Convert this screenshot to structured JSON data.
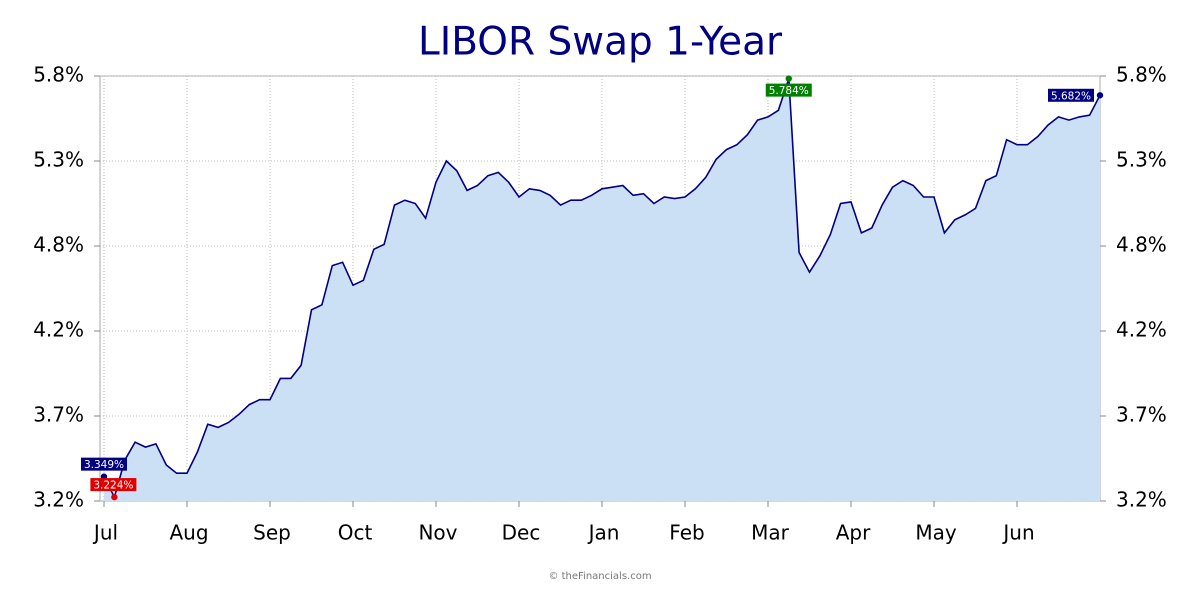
{
  "chart_data": {
    "type": "area",
    "title": "LIBOR Swap 1-Year",
    "footer": "© theFinancials.com",
    "categories": [
      "Jul",
      null,
      null,
      null,
      null,
      null,
      null,
      null,
      "Aug",
      null,
      null,
      null,
      null,
      null,
      null,
      null,
      "Sep",
      null,
      null,
      null,
      null,
      null,
      null,
      null,
      "Oct",
      null,
      null,
      null,
      null,
      null,
      null,
      null,
      "Nov",
      null,
      null,
      null,
      null,
      null,
      null,
      null,
      "Dec",
      null,
      null,
      null,
      null,
      null,
      null,
      null,
      "Jan",
      null,
      null,
      null,
      null,
      null,
      null,
      null,
      "Feb",
      null,
      null,
      null,
      null,
      null,
      null,
      null,
      "Mar",
      null,
      null,
      null,
      null,
      null,
      null,
      null,
      "Apr",
      null,
      null,
      null,
      null,
      null,
      null,
      null,
      "May",
      null,
      null,
      null,
      null,
      null,
      null,
      null,
      "Jun",
      null,
      null,
      null,
      null,
      null,
      null,
      null,
      null
    ],
    "values": [
      3.349,
      3.224,
      3.45,
      3.56,
      3.53,
      3.55,
      3.42,
      3.37,
      3.37,
      3.5,
      3.67,
      3.65,
      3.68,
      3.73,
      3.79,
      3.82,
      3.82,
      3.95,
      3.95,
      4.03,
      4.37,
      4.4,
      4.64,
      4.66,
      4.52,
      4.55,
      4.74,
      4.77,
      5.01,
      5.04,
      5.02,
      4.93,
      5.15,
      5.28,
      5.22,
      5.1,
      5.13,
      5.19,
      5.21,
      5.15,
      5.06,
      5.11,
      5.1,
      5.07,
      5.01,
      5.04,
      5.04,
      5.07,
      5.11,
      5.12,
      5.13,
      5.07,
      5.08,
      5.02,
      5.06,
      5.05,
      5.06,
      5.11,
      5.18,
      5.29,
      5.35,
      5.38,
      5.44,
      5.53,
      5.55,
      5.59,
      5.784,
      4.72,
      4.6,
      4.7,
      4.83,
      5.02,
      5.03,
      4.84,
      4.87,
      5.01,
      5.12,
      5.16,
      5.13,
      5.06,
      5.06,
      4.84,
      4.92,
      4.95,
      4.99,
      5.16,
      5.19,
      5.41,
      5.38,
      5.38,
      5.43,
      5.5,
      5.55,
      5.53,
      5.55,
      5.56,
      5.682
    ],
    "value_labels": [
      "3.349%",
      "3.224%",
      null,
      null,
      null,
      null,
      null,
      null,
      null,
      null,
      null,
      null,
      null,
      null,
      null,
      null,
      null,
      null,
      null,
      null,
      null,
      null,
      null,
      null,
      null,
      null,
      null,
      null,
      null,
      null,
      null,
      null,
      null,
      null,
      null,
      null,
      null,
      null,
      null,
      null,
      null,
      null,
      null,
      null,
      null,
      null,
      null,
      null,
      null,
      null,
      null,
      null,
      null,
      null,
      null,
      null,
      null,
      null,
      null,
      null,
      null,
      null,
      null,
      null,
      null,
      null,
      "5.784%",
      null,
      null,
      null,
      null,
      null,
      null,
      null,
      null,
      null,
      null,
      null,
      null,
      null,
      null,
      null,
      null,
      null,
      null,
      null,
      null,
      null,
      null,
      null,
      null,
      null,
      null,
      null,
      null,
      null,
      "5.682%"
    ],
    "color": "#000080",
    "fill_color": "#cce0f5",
    "max_color": "#008000",
    "min_color": "#e00000",
    "ylim": [
      3.2,
      5.8
    ],
    "yticks": [
      {
        "value": 3.2,
        "label": "3.2%"
      },
      {
        "value": 3.72,
        "label": "3.7%"
      },
      {
        "value": 4.24,
        "label": "4.2%"
      },
      {
        "value": 4.76,
        "label": "4.8%"
      },
      {
        "value": 5.28,
        "label": "5.3%"
      },
      {
        "value": 5.8,
        "label": "5.8%"
      }
    ],
    "grid": true
  }
}
